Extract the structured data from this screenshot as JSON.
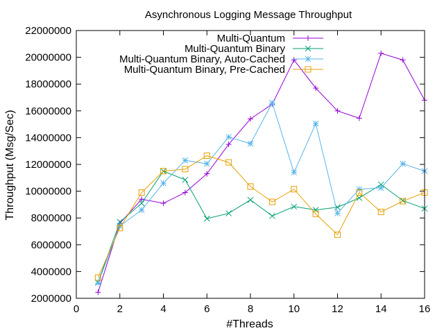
{
  "chart_data": {
    "type": "line",
    "title": "Asynchronous Logging Message Throughput",
    "xlabel": "#Threads",
    "ylabel": "Throughput (Msg/Sec)",
    "xlim": [
      0,
      16
    ],
    "ylim": [
      2000000,
      22000000
    ],
    "x_ticks": [
      0,
      2,
      4,
      6,
      8,
      10,
      12,
      14,
      16
    ],
    "y_ticks": [
      2000000,
      4000000,
      6000000,
      8000000,
      10000000,
      12000000,
      14000000,
      16000000,
      18000000,
      20000000,
      22000000
    ],
    "x_tick_labels": [
      "0",
      "2",
      "4",
      "6",
      "8",
      "10",
      "12",
      "14",
      "16"
    ],
    "y_tick_labels": [
      "2000000",
      "4000000",
      "6000000",
      "8000000",
      "10000000",
      "12000000",
      "14000000",
      "16000000",
      "18000000",
      "20000000",
      "22000000"
    ],
    "grid": false,
    "legend_position": "top-right",
    "x": [
      1,
      2,
      3,
      4,
      5,
      6,
      7,
      8,
      9,
      10,
      11,
      12,
      13,
      14,
      15,
      16
    ],
    "series": [
      {
        "name": "Multi-Quantum",
        "color": "#9400d3",
        "marker": "plus",
        "values": [
          2450000,
          7600000,
          9400000,
          9100000,
          9900000,
          11300000,
          13500000,
          15400000,
          16500000,
          19800000,
          17700000,
          16000000,
          15450000,
          20300000,
          19800000,
          16800000
        ]
      },
      {
        "name": "Multi-Quantum Binary",
        "color": "#009e73",
        "marker": "cross",
        "values": [
          3200000,
          7700000,
          9100000,
          11500000,
          10850000,
          7950000,
          8350000,
          9350000,
          8150000,
          8850000,
          8600000,
          8800000,
          9500000,
          10500000,
          9300000,
          8700000
        ]
      },
      {
        "name": "Multi-Quantum Binary, Auto-Cached",
        "color": "#56b4e9",
        "marker": "star",
        "values": [
          3150000,
          7400000,
          8600000,
          10600000,
          12300000,
          12050000,
          14050000,
          13550000,
          16600000,
          11400000,
          15050000,
          8350000,
          10150000,
          10250000,
          12050000,
          11500000
        ]
      },
      {
        "name": "Multi-Quantum Binary, Pre-Cached",
        "color": "#e69f00",
        "marker": "square",
        "values": [
          3550000,
          7250000,
          9900000,
          11500000,
          11650000,
          12650000,
          12150000,
          10350000,
          9200000,
          10150000,
          8300000,
          6750000,
          9900000,
          8450000,
          9250000,
          9900000
        ]
      }
    ]
  }
}
